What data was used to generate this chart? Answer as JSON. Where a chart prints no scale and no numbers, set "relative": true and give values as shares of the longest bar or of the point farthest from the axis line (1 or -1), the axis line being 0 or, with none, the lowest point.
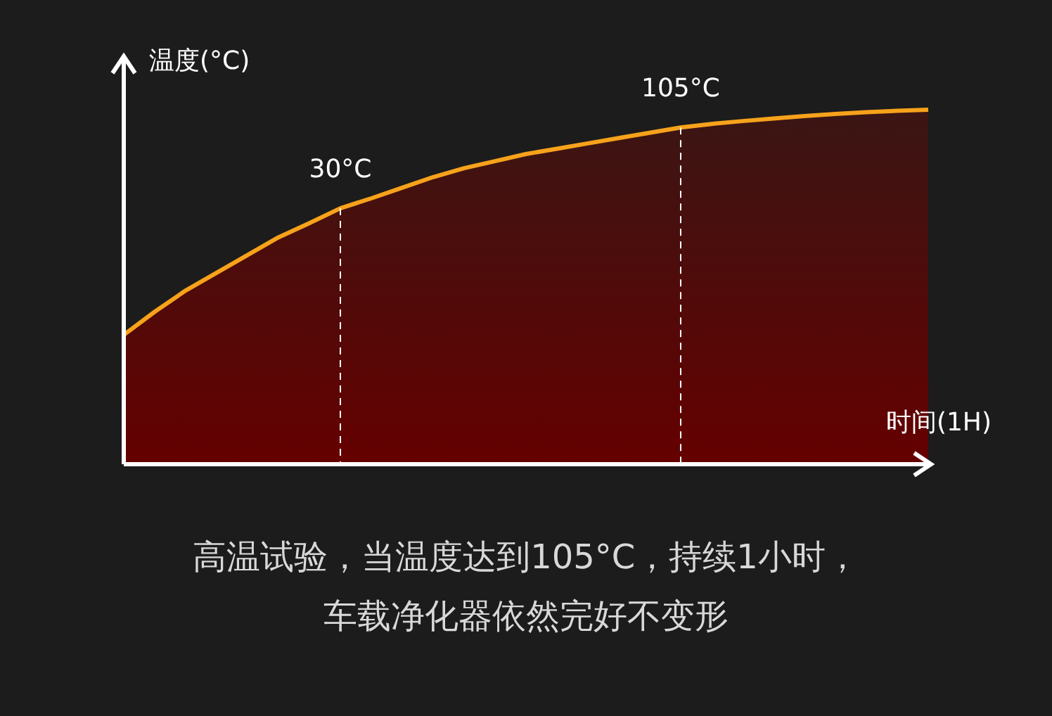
{
  "chart_data": {
    "type": "area",
    "relative": true,
    "xlabel": "时间(1H)",
    "ylabel": "温度(°C)",
    "categories": [
      null,
      null,
      null,
      null,
      null,
      null,
      null,
      null,
      null,
      null,
      null,
      null,
      null,
      null,
      null,
      null,
      null,
      null,
      null,
      null,
      null,
      null,
      null,
      null,
      null,
      null,
      null
    ],
    "series": [
      {
        "color": "#f7a21b",
        "values": [
          0.365,
          0.43,
          0.49,
          0.54,
          0.59,
          0.64,
          0.68,
          0.722,
          0.75,
          0.78,
          0.81,
          0.835,
          0.855,
          0.875,
          0.89,
          0.905,
          0.92,
          0.935,
          0.95,
          0.96,
          0.968,
          0.975,
          0.982,
          0.988,
          0.993,
          0.997,
          1.0
        ]
      }
    ],
    "annotations": [
      {
        "text": "30°C",
        "y": 0.722
      },
      {
        "text": "105°C",
        "y": 0.95
      },
      "高温试验，当温度达到105°C，持续1小时，",
      "车载净化器依然完好不变形"
    ]
  }
}
